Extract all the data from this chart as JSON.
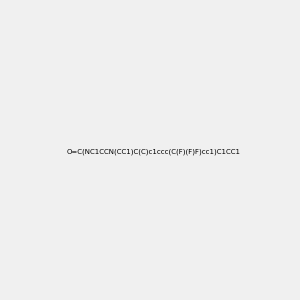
{
  "smiles": "O=C(NC1CCN(CC1)C(C)c1ccc(C(F)(F)F)cc1)C1CC1",
  "background_color_tuple": [
    0.941,
    0.941,
    0.941
  ],
  "atom_colors": {
    "N": [
      0.0,
      0.0,
      1.0
    ],
    "O": [
      1.0,
      0.0,
      0.0
    ],
    "F": [
      1.0,
      0.0,
      1.0
    ],
    "C": [
      0.0,
      0.0,
      0.0
    ]
  },
  "figsize": [
    3.0,
    3.0
  ],
  "dpi": 100,
  "img_size": [
    300,
    300
  ]
}
